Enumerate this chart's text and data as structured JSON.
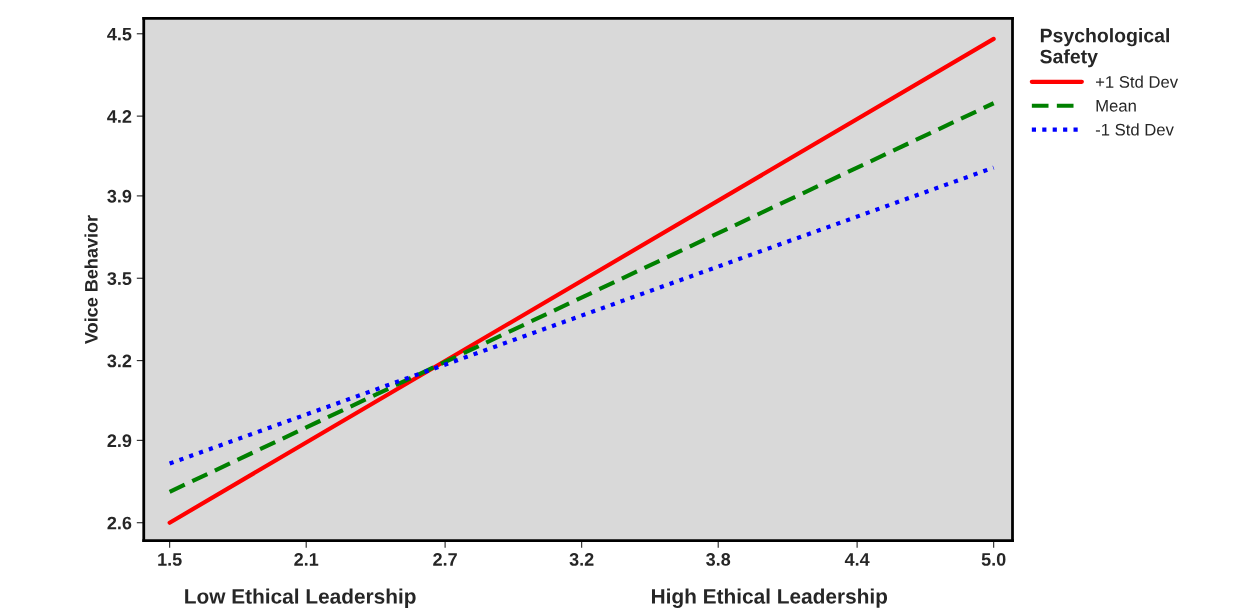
{
  "chart_data": {
    "type": "line",
    "ylabel": "Voice Behavior",
    "legend_title": "Psychological\nSafety",
    "annotations": [
      "Low Ethical Leadership",
      "High Ethical Leadership"
    ],
    "x": [
      1.5,
      5.0
    ],
    "series": [
      {
        "name": "+1 Std Dev",
        "color": "#ff0000",
        "values": [
          2.6,
          4.48
        ],
        "line_style": "solid"
      },
      {
        "name": "Mean",
        "color": "#008000",
        "values": [
          2.72,
          4.23
        ],
        "line_style": "dashed"
      },
      {
        "name": "-1 Std Dev",
        "color": "#0000ff",
        "values": [
          2.83,
          3.98
        ],
        "line_style": "dotted"
      }
    ],
    "xlim": [
      1.39,
      5.08
    ],
    "ylim": [
      2.53,
      4.56
    ],
    "xticks": [
      1.5,
      {
        "value": 2.08,
        "label": "2.1"
      },
      {
        "value": 2.67,
        "label": "2.7"
      },
      {
        "value": 3.25,
        "label": "3.2"
      },
      {
        "value": 3.83,
        "label": "3.8"
      },
      {
        "value": 4.42,
        "label": "4.4"
      },
      {
        "value": 5.0,
        "label": "5.0"
      }
    ],
    "yticks": [
      2.6,
      {
        "value": 2.92,
        "label": "2.9"
      },
      {
        "value": 3.23,
        "label": "3.2"
      },
      {
        "value": 3.55,
        "label": "3.5"
      },
      {
        "value": 3.87,
        "label": "3.9"
      },
      {
        "value": 4.18,
        "label": "4.2"
      },
      4.5
    ],
    "grid": false,
    "legend": "top right",
    "marker": "none"
  }
}
